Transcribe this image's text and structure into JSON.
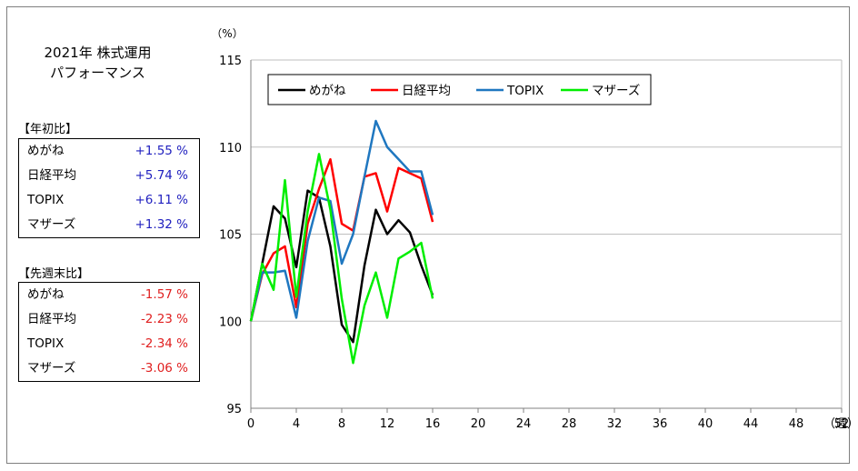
{
  "title_line1": "2021年 株式運用",
  "title_line2": "パフォーマンス",
  "ytd": {
    "label": "【年初比】",
    "rows": [
      {
        "name": "めがね",
        "value": "+1.55 %"
      },
      {
        "name": "日経平均",
        "value": "+5.74 %"
      },
      {
        "name": "TOPIX",
        "value": "+6.11 %"
      },
      {
        "name": "マザーズ",
        "value": "+1.32 %"
      }
    ],
    "color": "#1f1fbf"
  },
  "wow": {
    "label": "【先週末比】",
    "rows": [
      {
        "name": "めがね",
        "value": "-1.57 %"
      },
      {
        "name": "日経平均",
        "value": "-2.23 %"
      },
      {
        "name": "TOPIX",
        "value": "-2.34 %"
      },
      {
        "name": "マザーズ",
        "value": "-3.06 %"
      }
    ],
    "color": "#e02020"
  },
  "chart_data": {
    "type": "line",
    "ylabel": "（%）",
    "xlabel": "（週）",
    "xlim": [
      0,
      52
    ],
    "ylim": [
      95,
      115
    ],
    "x_ticks": [
      0,
      4,
      8,
      12,
      16,
      20,
      24,
      28,
      32,
      36,
      40,
      44,
      48,
      52
    ],
    "y_ticks": [
      95,
      100,
      105,
      110,
      115
    ],
    "grid": true,
    "legend_position": "top-left",
    "x": [
      0,
      1,
      2,
      3,
      4,
      5,
      6,
      7,
      8,
      9,
      10,
      11,
      12,
      13,
      14,
      15,
      16
    ],
    "series": [
      {
        "name": "めがね",
        "color": "#000000",
        "values": [
          100,
          103.3,
          106.6,
          105.9,
          103.1,
          107.5,
          107.1,
          104.3,
          99.8,
          98.8,
          103.2,
          106.4,
          105.0,
          105.8,
          105.1,
          103.2,
          101.5
        ]
      },
      {
        "name": "日経平均",
        "color": "#ff0000",
        "values": [
          100,
          102.7,
          103.9,
          104.3,
          100.8,
          105.6,
          107.6,
          109.3,
          105.6,
          105.2,
          108.3,
          108.5,
          106.3,
          108.8,
          108.5,
          108.2,
          105.7
        ]
      },
      {
        "name": "TOPIX",
        "color": "#1f77c0",
        "values": [
          100,
          102.8,
          102.8,
          102.9,
          100.2,
          104.6,
          107.1,
          106.9,
          103.3,
          105.0,
          108.3,
          111.5,
          110.0,
          109.3,
          108.6,
          108.6,
          106.1
        ]
      },
      {
        "name": "マザーズ",
        "color": "#00ee00",
        "values": [
          100,
          103.3,
          101.8,
          108.1,
          101.4,
          106.3,
          109.6,
          106.4,
          101.3,
          97.6,
          100.9,
          102.8,
          100.2,
          103.6,
          104.0,
          104.5,
          101.3
        ]
      }
    ]
  }
}
